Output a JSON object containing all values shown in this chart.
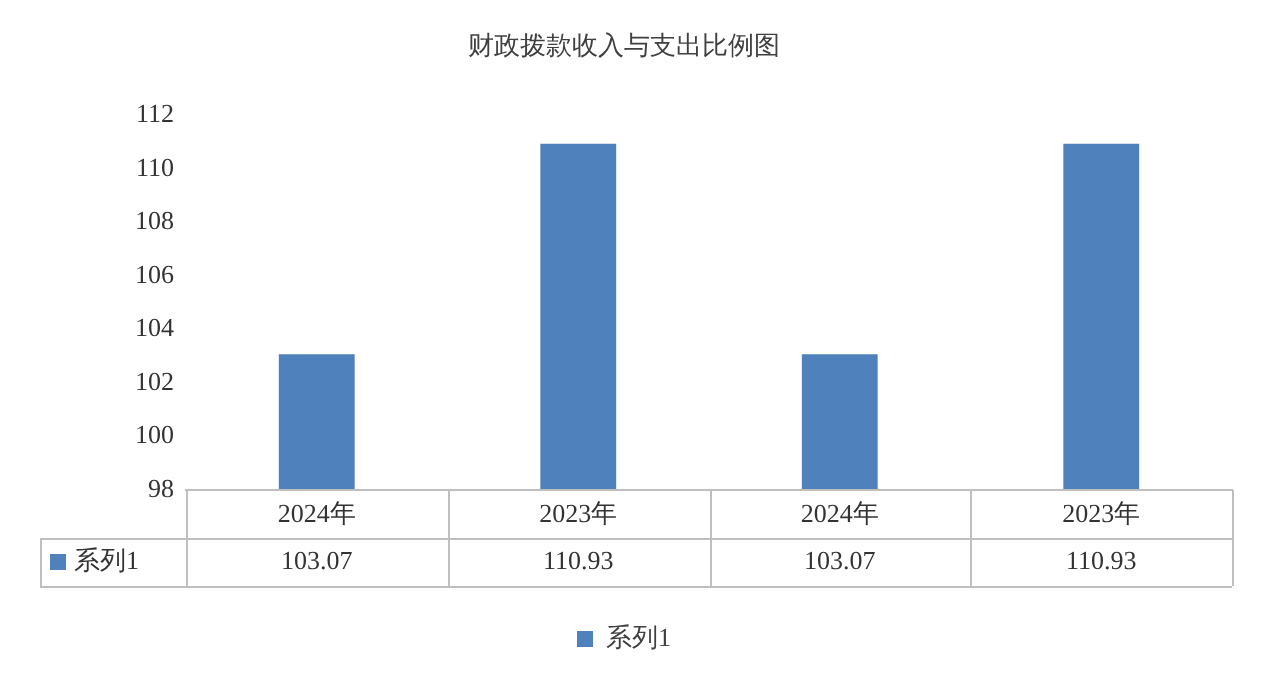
{
  "chart_data": {
    "type": "bar",
    "title": "财政拨款收入与支出比例图",
    "categories": [
      "2024年",
      "2023年",
      "2024年",
      "2023年"
    ],
    "series": [
      {
        "name": "系列1",
        "color": "#4f81bd",
        "values": [
          103.07,
          110.93,
          103.07,
          110.93
        ]
      }
    ],
    "ylim": [
      98,
      112
    ],
    "yticks": [
      98,
      100,
      102,
      104,
      106,
      108,
      110,
      112
    ],
    "grid": false,
    "legend": "bottom",
    "data_labels": true
  }
}
